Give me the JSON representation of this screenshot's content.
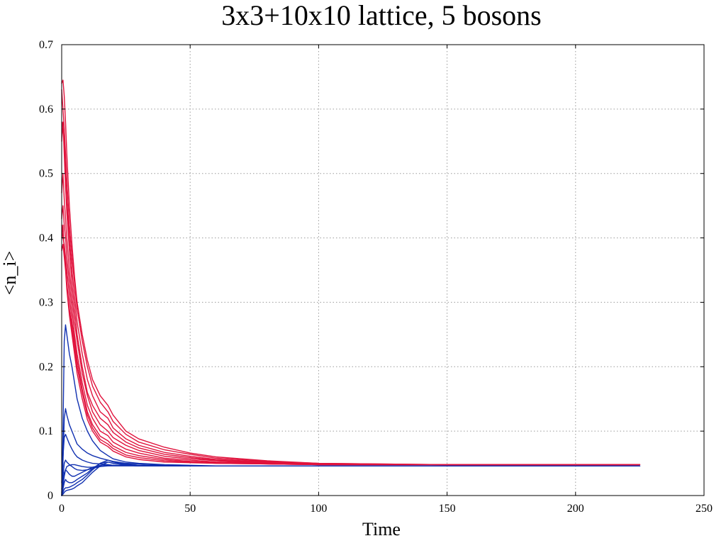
{
  "chart_data": {
    "type": "line",
    "title": "3x3+10x10 lattice, 5 bosons",
    "xlabel": "Time",
    "ylabel": "<n_i>",
    "xlim": [
      0,
      250
    ],
    "ylim": [
      0,
      0.7
    ],
    "x_ticks": [
      0,
      50,
      100,
      150,
      200,
      250
    ],
    "y_ticks": [
      0,
      0.1,
      0.2,
      0.3,
      0.4,
      0.5,
      0.6,
      0.7
    ],
    "x_tick_labels": [
      "0",
      "50",
      "100",
      "150",
      "200",
      "250"
    ],
    "y_tick_labels": [
      "0",
      "0.1",
      "0.2",
      "0.3",
      "0.4",
      "0.5",
      "0.6",
      "0.7"
    ],
    "grid": true,
    "colors": {
      "red_group": "#e0123c",
      "blue_group": "#1030b0"
    },
    "series": [
      {
        "group": "red",
        "x": [
          0,
          0.5,
          1,
          1.5,
          2,
          3,
          4,
          5,
          6,
          8,
          10,
          12,
          15,
          18,
          20,
          25,
          30,
          40,
          50,
          60,
          80,
          100,
          150,
          200,
          225
        ],
        "y": [
          0.64,
          0.645,
          0.62,
          0.58,
          0.53,
          0.45,
          0.39,
          0.34,
          0.3,
          0.25,
          0.21,
          0.18,
          0.155,
          0.14,
          0.125,
          0.1,
          0.088,
          0.075,
          0.066,
          0.06,
          0.054,
          0.05,
          0.048,
          0.048,
          0.048
        ]
      },
      {
        "group": "red",
        "x": [
          0,
          0.5,
          1,
          1.5,
          2,
          3,
          4,
          5,
          6,
          8,
          10,
          12,
          15,
          18,
          20,
          25,
          30,
          40,
          50,
          60,
          80,
          100,
          150,
          200,
          225
        ],
        "y": [
          0.63,
          0.6,
          0.57,
          0.53,
          0.49,
          0.42,
          0.37,
          0.33,
          0.29,
          0.24,
          0.2,
          0.17,
          0.145,
          0.13,
          0.115,
          0.095,
          0.083,
          0.071,
          0.064,
          0.058,
          0.053,
          0.05,
          0.048,
          0.048,
          0.048
        ]
      },
      {
        "group": "red",
        "x": [
          0,
          0.5,
          1,
          1.5,
          2,
          3,
          4,
          5,
          6,
          8,
          10,
          12,
          15,
          18,
          20,
          25,
          30,
          40,
          50,
          60,
          80,
          100,
          150,
          200,
          225
        ],
        "y": [
          0.58,
          0.57,
          0.55,
          0.5,
          0.46,
          0.4,
          0.35,
          0.31,
          0.27,
          0.22,
          0.18,
          0.155,
          0.13,
          0.12,
          0.105,
          0.088,
          0.078,
          0.067,
          0.061,
          0.056,
          0.052,
          0.049,
          0.048,
          0.048,
          0.048
        ]
      },
      {
        "group": "red",
        "x": [
          0,
          0.5,
          1,
          1.5,
          2,
          3,
          4,
          5,
          6,
          8,
          10,
          12,
          15,
          18,
          20,
          25,
          30,
          40,
          50,
          60,
          80,
          100,
          150,
          200,
          225
        ],
        "y": [
          0.55,
          0.58,
          0.53,
          0.48,
          0.44,
          0.38,
          0.33,
          0.29,
          0.25,
          0.2,
          0.16,
          0.14,
          0.12,
          0.11,
          0.098,
          0.083,
          0.074,
          0.064,
          0.059,
          0.055,
          0.051,
          0.049,
          0.048,
          0.048,
          0.048
        ]
      },
      {
        "group": "red",
        "x": [
          0,
          0.5,
          1,
          1.5,
          2,
          3,
          4,
          5,
          6,
          8,
          10,
          12,
          15,
          18,
          20,
          25,
          30,
          40,
          50,
          60,
          80,
          100,
          150,
          200,
          225
        ],
        "y": [
          0.47,
          0.5,
          0.46,
          0.43,
          0.4,
          0.35,
          0.31,
          0.27,
          0.24,
          0.19,
          0.155,
          0.13,
          0.11,
          0.1,
          0.09,
          0.078,
          0.07,
          0.061,
          0.057,
          0.054,
          0.05,
          0.049,
          0.048,
          0.048,
          0.048
        ]
      },
      {
        "group": "red",
        "x": [
          0,
          0.5,
          1,
          1.5,
          2,
          3,
          4,
          5,
          6,
          8,
          10,
          12,
          15,
          18,
          20,
          25,
          30,
          40,
          50,
          60,
          80,
          100,
          150,
          200,
          225
        ],
        "y": [
          0.43,
          0.45,
          0.42,
          0.4,
          0.37,
          0.33,
          0.29,
          0.25,
          0.22,
          0.175,
          0.14,
          0.12,
          0.1,
          0.093,
          0.083,
          0.072,
          0.066,
          0.058,
          0.055,
          0.052,
          0.05,
          0.048,
          0.048,
          0.048,
          0.048
        ]
      },
      {
        "group": "red",
        "x": [
          0,
          0.5,
          1,
          1.5,
          2,
          3,
          4,
          5,
          6,
          8,
          10,
          12,
          15,
          18,
          20,
          25,
          30,
          40,
          50,
          60,
          80,
          100,
          150,
          200,
          225
        ],
        "y": [
          0.42,
          0.4,
          0.39,
          0.37,
          0.35,
          0.31,
          0.27,
          0.24,
          0.21,
          0.165,
          0.13,
          0.11,
          0.092,
          0.085,
          0.077,
          0.067,
          0.062,
          0.056,
          0.053,
          0.051,
          0.049,
          0.048,
          0.048,
          0.048,
          0.048
        ]
      },
      {
        "group": "red",
        "x": [
          0,
          0.5,
          1,
          1.5,
          2,
          3,
          4,
          5,
          6,
          8,
          10,
          12,
          15,
          18,
          20,
          25,
          30,
          40,
          50,
          60,
          80,
          100,
          150,
          200,
          225
        ],
        "y": [
          0.4,
          0.42,
          0.38,
          0.36,
          0.33,
          0.29,
          0.26,
          0.23,
          0.2,
          0.16,
          0.125,
          0.105,
          0.087,
          0.08,
          0.073,
          0.063,
          0.059,
          0.054,
          0.052,
          0.05,
          0.049,
          0.048,
          0.048,
          0.048,
          0.048
        ]
      },
      {
        "group": "red",
        "x": [
          0,
          0.5,
          1,
          1.5,
          2,
          3,
          4,
          5,
          6,
          8,
          10,
          12,
          15,
          18,
          20,
          25,
          30,
          40,
          50,
          60,
          80,
          100,
          150,
          200,
          225
        ],
        "y": [
          0.38,
          0.39,
          0.37,
          0.35,
          0.32,
          0.28,
          0.25,
          0.22,
          0.19,
          0.15,
          0.118,
          0.1,
          0.083,
          0.076,
          0.069,
          0.06,
          0.056,
          0.052,
          0.051,
          0.05,
          0.049,
          0.048,
          0.048,
          0.048,
          0.048
        ]
      },
      {
        "group": "blue",
        "x": [
          0,
          0.5,
          1,
          1.5,
          2,
          3,
          4,
          5,
          6,
          8,
          10,
          12,
          15,
          18,
          20,
          25,
          30,
          40,
          50,
          60,
          80,
          100,
          150,
          200,
          225
        ],
        "y": [
          0.0,
          0.1,
          0.24,
          0.265,
          0.25,
          0.22,
          0.2,
          0.175,
          0.15,
          0.12,
          0.1,
          0.085,
          0.07,
          0.062,
          0.057,
          0.052,
          0.05,
          0.048,
          0.047,
          0.046,
          0.046,
          0.046,
          0.046,
          0.046,
          0.046
        ]
      },
      {
        "group": "blue",
        "x": [
          0,
          0.5,
          1,
          1.5,
          2,
          3,
          4,
          5,
          6,
          8,
          10,
          12,
          15,
          18,
          20,
          25,
          30,
          40,
          50,
          60,
          80,
          100,
          150,
          200,
          225
        ],
        "y": [
          0.0,
          0.05,
          0.12,
          0.135,
          0.125,
          0.11,
          0.1,
          0.09,
          0.08,
          0.072,
          0.066,
          0.062,
          0.058,
          0.055,
          0.053,
          0.05,
          0.049,
          0.047,
          0.046,
          0.046,
          0.046,
          0.046,
          0.046,
          0.046,
          0.046
        ]
      },
      {
        "group": "blue",
        "x": [
          0,
          0.5,
          1,
          1.5,
          2,
          3,
          4,
          5,
          6,
          8,
          10,
          12,
          15,
          18,
          20,
          25,
          30,
          40,
          50,
          60,
          80,
          100,
          150,
          200,
          225
        ],
        "y": [
          0.01,
          0.03,
          0.05,
          0.055,
          0.052,
          0.048,
          0.045,
          0.042,
          0.04,
          0.039,
          0.04,
          0.042,
          0.045,
          0.047,
          0.047,
          0.047,
          0.046,
          0.046,
          0.046,
          0.046,
          0.046,
          0.046,
          0.046,
          0.046,
          0.046
        ]
      },
      {
        "group": "blue",
        "x": [
          0,
          0.5,
          1,
          1.5,
          2,
          3,
          4,
          5,
          6,
          8,
          10,
          12,
          15,
          18,
          20,
          25,
          30,
          40,
          50,
          60,
          80,
          100,
          150,
          200,
          225
        ],
        "y": [
          0.005,
          0.02,
          0.035,
          0.04,
          0.038,
          0.033,
          0.03,
          0.03,
          0.032,
          0.036,
          0.04,
          0.044,
          0.047,
          0.048,
          0.047,
          0.047,
          0.046,
          0.046,
          0.046,
          0.046,
          0.046,
          0.046,
          0.046,
          0.046,
          0.046
        ]
      },
      {
        "group": "blue",
        "x": [
          0,
          0.5,
          1,
          1.5,
          2,
          3,
          4,
          5,
          6,
          8,
          10,
          12,
          15,
          18,
          20,
          25,
          30,
          40,
          50,
          60,
          80,
          100,
          150,
          200,
          225
        ],
        "y": [
          0.0,
          0.01,
          0.02,
          0.025,
          0.022,
          0.02,
          0.02,
          0.022,
          0.025,
          0.03,
          0.035,
          0.042,
          0.05,
          0.052,
          0.05,
          0.048,
          0.047,
          0.046,
          0.046,
          0.046,
          0.046,
          0.046,
          0.046,
          0.046,
          0.046
        ]
      },
      {
        "group": "blue",
        "x": [
          0,
          0.5,
          1,
          1.5,
          2,
          3,
          4,
          5,
          6,
          8,
          10,
          12,
          15,
          18,
          20,
          25,
          30,
          40,
          50,
          60,
          80,
          100,
          150,
          200,
          225
        ],
        "y": [
          0.0,
          0.005,
          0.01,
          0.012,
          0.012,
          0.013,
          0.015,
          0.017,
          0.02,
          0.025,
          0.032,
          0.04,
          0.05,
          0.055,
          0.052,
          0.049,
          0.047,
          0.046,
          0.046,
          0.046,
          0.046,
          0.046,
          0.046,
          0.046,
          0.046
        ]
      },
      {
        "group": "blue",
        "x": [
          0,
          0.5,
          1,
          1.5,
          2,
          3,
          4,
          5,
          6,
          8,
          10,
          12,
          15,
          18,
          20,
          25,
          30,
          40,
          50,
          60,
          80,
          100,
          150,
          200,
          225
        ],
        "y": [
          0.0,
          0.002,
          0.005,
          0.007,
          0.008,
          0.009,
          0.01,
          0.012,
          0.015,
          0.02,
          0.028,
          0.036,
          0.046,
          0.052,
          0.05,
          0.048,
          0.047,
          0.046,
          0.046,
          0.046,
          0.046,
          0.046,
          0.046,
          0.046,
          0.046
        ]
      },
      {
        "group": "blue",
        "x": [
          0,
          0.5,
          1,
          1.5,
          2,
          3,
          4,
          5,
          6,
          8,
          10,
          12,
          15,
          18,
          20,
          25,
          30,
          40,
          50,
          60,
          80,
          100,
          150,
          200,
          225
        ],
        "y": [
          0.02,
          0.06,
          0.09,
          0.095,
          0.09,
          0.08,
          0.072,
          0.065,
          0.06,
          0.055,
          0.052,
          0.05,
          0.049,
          0.048,
          0.047,
          0.047,
          0.046,
          0.046,
          0.046,
          0.046,
          0.046,
          0.046,
          0.046,
          0.046,
          0.046
        ]
      },
      {
        "group": "blue",
        "x": [
          0,
          0.5,
          1,
          1.5,
          2,
          3,
          4,
          5,
          6,
          8,
          10,
          12,
          15,
          18,
          20,
          25,
          30,
          40,
          50,
          60,
          80,
          100,
          150,
          200,
          225
        ],
        "y": [
          0.0,
          0.015,
          0.03,
          0.04,
          0.045,
          0.047,
          0.048,
          0.048,
          0.047,
          0.045,
          0.044,
          0.044,
          0.045,
          0.046,
          0.046,
          0.046,
          0.046,
          0.046,
          0.046,
          0.046,
          0.046,
          0.046,
          0.046,
          0.046,
          0.046
        ]
      }
    ]
  }
}
